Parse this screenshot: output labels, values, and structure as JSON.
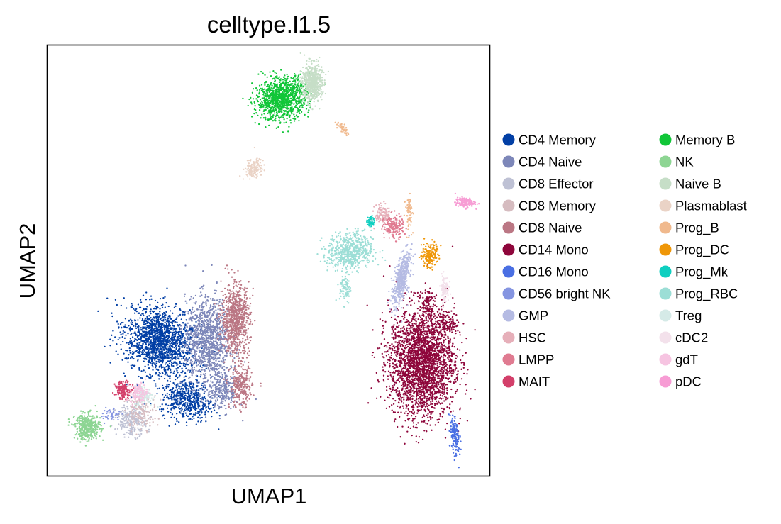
{
  "chart_data": {
    "type": "scatter",
    "title": "celltype.l1.5",
    "xlabel": "UMAP1",
    "ylabel": "UMAP2",
    "xticks": [],
    "yticks": [],
    "grid": false,
    "legend_position": "right",
    "legend_columns": 2,
    "categories": [
      "CD4 Memory",
      "CD4 Naive",
      "CD8 Effector",
      "CD8 Memory",
      "CD8 Naive",
      "CD14 Mono",
      "CD16 Mono",
      "CD56 bright NK",
      "GMP",
      "HSC",
      "LMPP",
      "MAIT",
      "Memory B",
      "NK",
      "Naive B",
      "Plasmablast",
      "Prog_B",
      "Prog_DC",
      "Prog_Mk",
      "Prog_RBC",
      "Treg",
      "cDC2",
      "gdT",
      "pDC"
    ],
    "colors": [
      "#023fa5",
      "#7d87b9",
      "#bec1d4",
      "#d6bcc0",
      "#bb7784",
      "#8e063b",
      "#4a6fe3",
      "#8595e1",
      "#b5bbe3",
      "#e6afb9",
      "#e07b91",
      "#d33f6a",
      "#11c638",
      "#8dd593",
      "#c6dec7",
      "#ead3c6",
      "#f0b98d",
      "#ef9708",
      "#0fcfc0",
      "#9cded6",
      "#d5eae7",
      "#f3e1eb",
      "#f6c4e1",
      "#f79cd4"
    ],
    "clusters": [
      {
        "category": "CD4 Memory",
        "parts": [
          [
            -4.6,
            -2.6,
            1.25,
            0.95,
            -0.35,
            1600
          ],
          [
            -3.5,
            -4.5,
            0.9,
            0.6,
            -0.2,
            500
          ]
        ]
      },
      {
        "category": "CD4 Naive",
        "parts": [
          [
            -2.7,
            -2.6,
            0.8,
            1.25,
            0,
            1100
          ],
          [
            -2.1,
            -4.2,
            0.55,
            0.6,
            0,
            260
          ]
        ]
      },
      {
        "category": "CD8 Effector",
        "parts": [
          [
            -5.7,
            -5.2,
            0.55,
            0.45,
            0,
            240
          ]
        ]
      },
      {
        "category": "CD8 Memory",
        "parts": [
          [
            -5.3,
            -4.9,
            0.55,
            0.5,
            0,
            150
          ]
        ]
      },
      {
        "category": "CD8 Naive",
        "parts": [
          [
            -1.6,
            -1.9,
            0.5,
            1.05,
            0,
            800
          ],
          [
            -1.4,
            -4.1,
            0.4,
            0.6,
            0,
            260
          ]
        ]
      },
      {
        "category": "CD14 Mono",
        "parts": [
          [
            5.7,
            -3.3,
            1.15,
            1.6,
            0,
            2700
          ],
          [
            6.7,
            -2.0,
            0.45,
            0.3,
            0,
            120
          ],
          [
            5.9,
            -1.4,
            0.22,
            0.5,
            0,
            80
          ]
        ]
      },
      {
        "category": "CD16 Mono",
        "parts": [
          [
            7.0,
            -5.7,
            0.15,
            0.6,
            0.1,
            160
          ]
        ]
      },
      {
        "category": "CD56 bright NK",
        "parts": [
          [
            -6.5,
            -5.0,
            0.35,
            0.22,
            0,
            40
          ]
        ]
      },
      {
        "category": "GMP",
        "parts": [
          [
            4.9,
            -0.6,
            0.25,
            0.8,
            -0.25,
            500
          ]
        ]
      },
      {
        "category": "HSC",
        "parts": [
          [
            4.2,
            1.5,
            0.3,
            0.3,
            0,
            120
          ]
        ]
      },
      {
        "category": "LMPP",
        "parts": [
          [
            4.6,
            1.1,
            0.35,
            0.35,
            0,
            160
          ]
        ]
      },
      {
        "category": "MAIT",
        "parts": [
          [
            -6.0,
            -4.2,
            0.3,
            0.25,
            0,
            140
          ]
        ]
      },
      {
        "category": "Memory B",
        "parts": [
          [
            0.2,
            5.3,
            0.9,
            0.6,
            0.2,
            1100
          ]
        ]
      },
      {
        "category": "NK",
        "parts": [
          [
            -7.4,
            -5.4,
            0.45,
            0.38,
            0,
            400
          ]
        ]
      },
      {
        "category": "Naive B",
        "parts": [
          [
            1.4,
            5.8,
            0.35,
            0.55,
            0,
            600
          ]
        ]
      },
      {
        "category": "Plasmablast",
        "parts": [
          [
            -0.9,
            3.0,
            0.35,
            0.25,
            0.5,
            140
          ]
        ]
      },
      {
        "category": "Prog_B",
        "parts": [
          [
            5.2,
            1.6,
            0.12,
            0.55,
            0,
            70
          ],
          [
            2.6,
            4.3,
            0.1,
            0.25,
            0.8,
            50
          ]
        ]
      },
      {
        "category": "Prog_DC",
        "parts": [
          [
            6.0,
            0.2,
            0.3,
            0.35,
            -0.3,
            160
          ]
        ]
      },
      {
        "category": "Prog_Mk",
        "parts": [
          [
            3.7,
            1.3,
            0.12,
            0.18,
            0,
            50
          ]
        ]
      },
      {
        "category": "Prog_RBC",
        "parts": [
          [
            2.9,
            0.3,
            0.8,
            0.55,
            0.1,
            600
          ],
          [
            2.7,
            -0.9,
            0.2,
            0.45,
            0,
            90
          ]
        ]
      },
      {
        "category": "Treg",
        "parts": [
          [
            -5.2,
            -4.4,
            0.35,
            0.3,
            0,
            100
          ]
        ]
      },
      {
        "category": "cDC2",
        "parts": [
          [
            6.6,
            -0.9,
            0.15,
            0.4,
            0,
            110
          ]
        ]
      },
      {
        "category": "gdT",
        "parts": [
          [
            -5.4,
            -4.3,
            0.3,
            0.3,
            0,
            120
          ]
        ]
      },
      {
        "category": "pDC",
        "parts": [
          [
            7.4,
            1.9,
            0.35,
            0.15,
            0,
            130
          ]
        ]
      }
    ]
  }
}
